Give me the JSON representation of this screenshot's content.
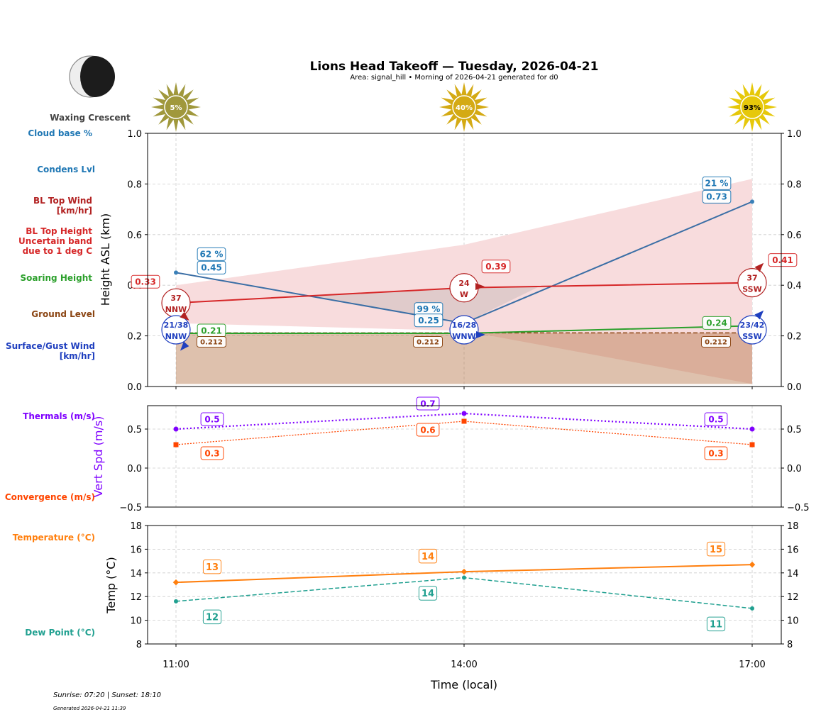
{
  "chart_data": {
    "type": "line",
    "title": "Lions Head Takeoff — Tuesday, 2026-04-21",
    "subtitle": "Area: signal_hill • Morning of 2026-04-21 generated for d0",
    "x_categories": [
      "11:00",
      "14:00",
      "17:00"
    ],
    "xlabel": "Time (local)",
    "moon": {
      "phase": "Waxing Crescent",
      "icon": "moon-waxing-crescent-icon"
    },
    "sun_icons": [
      {
        "label": "5%",
        "color": "#a0983c"
      },
      {
        "label": "40%",
        "color": "#d4aa14"
      },
      {
        "label": "93%",
        "color": "#e6c80a"
      }
    ],
    "row_labels": {
      "cloud_base": "Cloud base %",
      "condens": "Condens Lvl",
      "bl_wind": "BL Top Wind\n[km/hr]",
      "bl_top": "BL Top Height\nUncertain band\ndue to 1 deg C",
      "soaring": "Soaring Height",
      "ground": "Ground Level",
      "surface_wind": "Surface/Gust Wind\n[km/hr]",
      "thermals": "Thermals (m/s)",
      "convergence": "Convergence (m/s)",
      "temperature": "Temperature (°C)",
      "dew_point": "Dew Point (°C)"
    },
    "height_panel": {
      "ylabel": "Height ASL (km)",
      "ylim": [
        0,
        1.0
      ],
      "yticks": [
        "0.0",
        "0.2",
        "0.4",
        "0.6",
        "0.8",
        "1.0"
      ],
      "grid": true,
      "cloud_base": {
        "values": [
          0.45,
          0.25,
          0.73
        ],
        "labels": [
          "0.45",
          "0.25",
          "0.73"
        ],
        "pct_labels": [
          "62 %",
          "99 %",
          "21 %"
        ],
        "color": "#3a6ea5"
      },
      "bl_top": {
        "values": [
          0.33,
          0.39,
          0.41
        ],
        "labels": [
          "0.33",
          "0.39",
          "0.41"
        ],
        "color": "#d62728"
      },
      "bl_uncertainty": {
        "upper": [
          0.4,
          0.56,
          0.82
        ],
        "lower": [
          0.25,
          0.22,
          0.01
        ],
        "color": "#f8dcdd"
      },
      "soaring": {
        "values": [
          0.21,
          0.21,
          0.24
        ],
        "labels": [
          "0.21",
          "",
          "0.24"
        ],
        "color": "#2ca02c"
      },
      "ground": {
        "value": 0.212,
        "labels": [
          "0.212",
          "0.212",
          "0.212"
        ],
        "color": "#8b4513"
      },
      "bl_wind": [
        {
          "speed": "37",
          "dir": "NNW"
        },
        {
          "speed": "24",
          "dir": "W"
        },
        {
          "speed": "37",
          "dir": "SSW"
        }
      ],
      "surface_wind": [
        {
          "speed": "21/38",
          "dir": "NNW"
        },
        {
          "speed": "16/28",
          "dir": "WNW"
        },
        {
          "speed": "23/42",
          "dir": "SSW"
        }
      ],
      "wind_colors": {
        "bl": "#b22222",
        "surface": "#1f3fbf"
      }
    },
    "vert_panel": {
      "ylabel": "Vert Spd (m/s)",
      "ylim": [
        -0.5,
        0.8
      ],
      "yticks": [
        "−0.5",
        "0.0",
        "0.5"
      ],
      "thermals": {
        "values": [
          0.5,
          0.7,
          0.5
        ],
        "labels": [
          "0.5",
          "0.7",
          "0.5"
        ],
        "color": "#7f00ff"
      },
      "convergence": {
        "values": [
          0.3,
          0.6,
          0.3
        ],
        "labels": [
          "0.3",
          "0.6",
          "0.3"
        ],
        "color": "#ff4500"
      }
    },
    "temp_panel": {
      "ylabel": "Temp (°C)",
      "ylim": [
        8,
        18
      ],
      "yticks": [
        "8",
        "10",
        "12",
        "14",
        "16",
        "18"
      ],
      "temperature": {
        "values": [
          13.2,
          14.1,
          14.7
        ],
        "labels": [
          "13",
          "14",
          "15"
        ],
        "color": "#ff7f0e"
      },
      "dew_point": {
        "values": [
          11.6,
          13.6,
          11.0
        ],
        "labels": [
          "12",
          "14",
          "11"
        ],
        "color": "#20a090"
      }
    }
  },
  "footer": {
    "sun_times": "Sunrise: 07:20 | Sunset: 18:10",
    "generated": "Generated 2026-04-21 11:39"
  }
}
